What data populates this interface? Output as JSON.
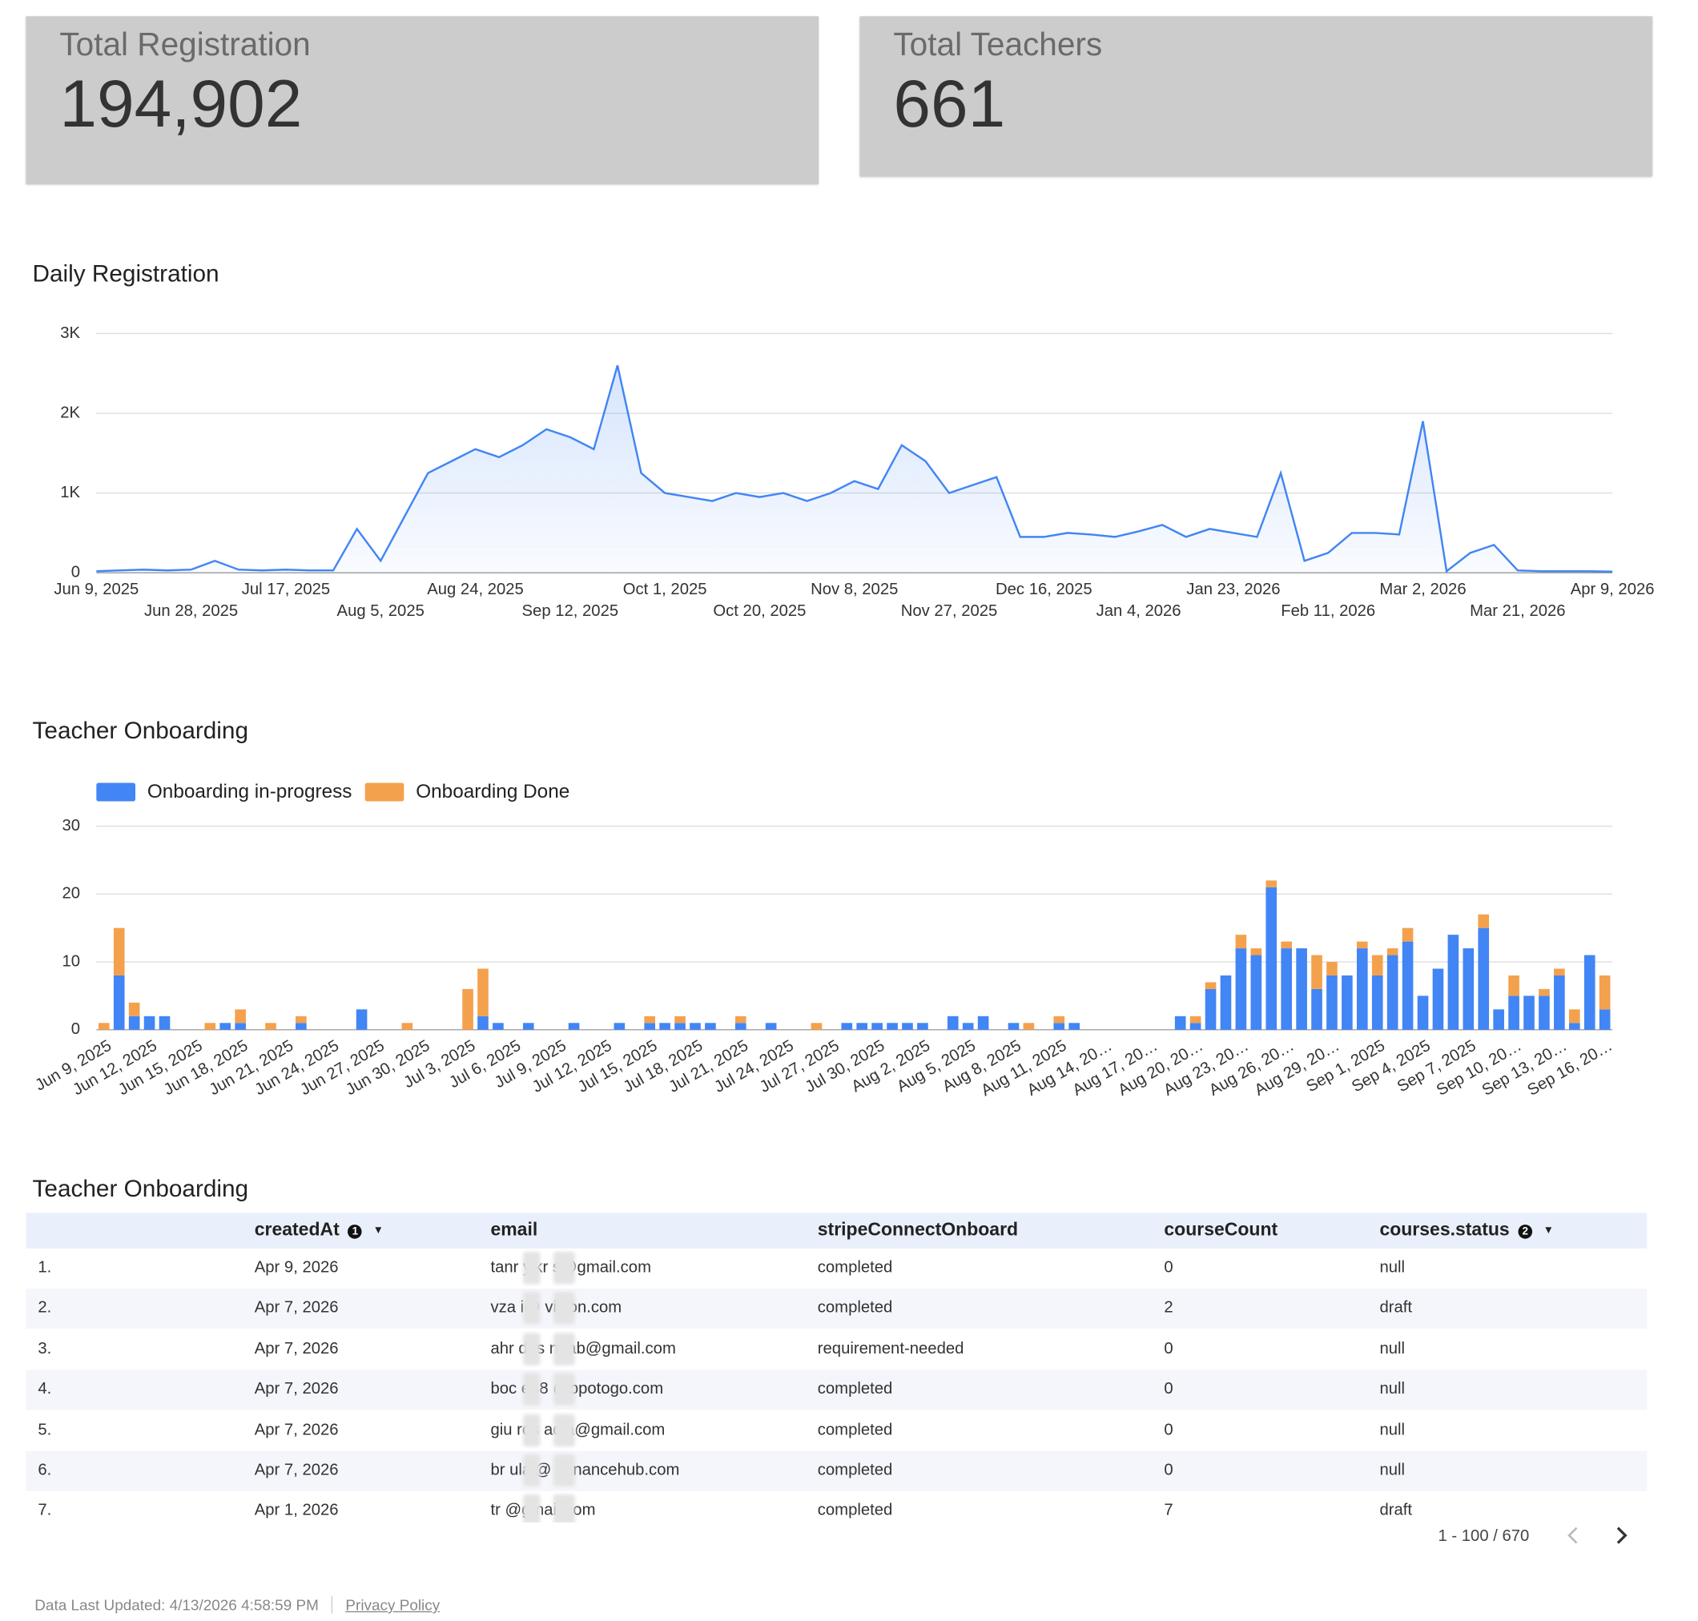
{
  "scorecards": [
    {
      "title": "Total Registration",
      "value": "194,902"
    },
    {
      "title": "Total Teachers",
      "value": "661"
    }
  ],
  "chart_data": [
    {
      "type": "line",
      "title": "Daily Registration",
      "color": "#4285f4",
      "grid": true,
      "categories": [
        "Jun 9, 2025",
        null,
        null,
        null,
        "Jun 28, 2025",
        null,
        null,
        null,
        "Jul 17, 2025",
        null,
        null,
        null,
        "Aug 5, 2025",
        null,
        null,
        null,
        "Aug 24, 2025",
        null,
        null,
        null,
        "Sep 12, 2025",
        null,
        null,
        null,
        "Oct 1, 2025",
        null,
        null,
        null,
        "Oct 20, 2025",
        null,
        null,
        null,
        "Nov 8, 2025",
        null,
        null,
        null,
        "Nov 27, 2025",
        null,
        null,
        null,
        "Dec 16, 2025",
        null,
        null,
        null,
        "Jan 4, 2026",
        null,
        null,
        null,
        "Jan 23, 2026",
        null,
        null,
        null,
        "Feb 11, 2026",
        null,
        null,
        null,
        "Mar 2, 2026",
        null,
        null,
        null,
        "Mar 21, 2026",
        null,
        null,
        null,
        "Apr 9, 2026"
      ],
      "values": [
        20,
        30,
        40,
        30,
        40,
        150,
        40,
        30,
        40,
        30,
        30,
        550,
        150,
        700,
        1250,
        1400,
        1550,
        1450,
        1600,
        1800,
        1700,
        1550,
        2600,
        1250,
        1000,
        950,
        900,
        1000,
        950,
        1000,
        900,
        1000,
        1150,
        1050,
        1600,
        1400,
        1000,
        1100,
        1200,
        450,
        450,
        500,
        480,
        450,
        520,
        600,
        450,
        550,
        500,
        450,
        1250,
        150,
        250,
        500,
        500,
        480,
        1900,
        20,
        250,
        350,
        30,
        20,
        20,
        20,
        15
      ],
      "ylim": [
        0,
        3000
      ],
      "yticks": [
        0,
        {
          "value": 1000,
          "label": "1K"
        },
        {
          "value": 2000,
          "label": "2K"
        },
        {
          "value": 3000,
          "label": "3K"
        }
      ]
    },
    {
      "type": "bar",
      "title": "Teacher Onboarding",
      "stacked": true,
      "grid": true,
      "legend": "top-left",
      "categories": [
        "Jun 9, 2025",
        null,
        null,
        "Jun 12, 2025",
        null,
        null,
        "Jun 15, 2025",
        null,
        null,
        "Jun 18, 2025",
        null,
        null,
        "Jun 21, 2025",
        null,
        null,
        "Jun 24, 2025",
        null,
        null,
        "Jun 27, 2025",
        null,
        null,
        "Jun 30, 2025",
        null,
        null,
        "Jul 3, 2025",
        null,
        null,
        "Jul 6, 2025",
        null,
        null,
        "Jul 9, 2025",
        null,
        null,
        "Jul 12, 2025",
        null,
        null,
        "Jul 15, 2025",
        null,
        null,
        "Jul 18, 2025",
        null,
        null,
        "Jul 21, 2025",
        null,
        null,
        "Jul 24, 2025",
        null,
        null,
        "Jul 27, 2025",
        null,
        null,
        "Jul 30, 2025",
        null,
        null,
        "Aug 2, 2025",
        null,
        null,
        "Aug 5, 2025",
        null,
        null,
        "Aug 8, 2025",
        null,
        null,
        "Aug 11, 2025",
        null,
        null,
        "Aug 14, 20…",
        null,
        null,
        "Aug 17, 20…",
        null,
        null,
        "Aug 20, 20…",
        null,
        null,
        "Aug 23, 20…",
        null,
        null,
        "Aug 26, 20…",
        null,
        null,
        "Aug 29, 20…",
        null,
        null,
        "Sep 1, 2025",
        null,
        null,
        "Sep 4, 2025",
        null,
        null,
        "Sep 7, 2025",
        null,
        null,
        "Sep 10, 20…",
        null,
        null,
        "Sep 13, 20…",
        null,
        null,
        "Sep 16, 20…"
      ],
      "series": [
        {
          "name": "Onboarding in-progress",
          "color": "#4285f4",
          "values": [
            0,
            8,
            2,
            2,
            2,
            0,
            0,
            0,
            1,
            1,
            0,
            0,
            0,
            1,
            0,
            0,
            0,
            3,
            0,
            0,
            0,
            0,
            0,
            0,
            0,
            2,
            1,
            0,
            1,
            0,
            0,
            1,
            0,
            0,
            1,
            0,
            1,
            1,
            1,
            1,
            1,
            0,
            1,
            0,
            1,
            0,
            0,
            0,
            0,
            1,
            1,
            1,
            1,
            1,
            1,
            0,
            2,
            1,
            2,
            0,
            1,
            0,
            0,
            1,
            1,
            0,
            0,
            0,
            0,
            0,
            0,
            2,
            1,
            6,
            8,
            12,
            11,
            21,
            12,
            12,
            6,
            8,
            8,
            12,
            8,
            11,
            13,
            5,
            9,
            14,
            12,
            15,
            3,
            5,
            5,
            5,
            8,
            1,
            11,
            3
          ]
        },
        {
          "name": "Onboarding Done",
          "color": "#f4a14e",
          "values": [
            1,
            7,
            2,
            0,
            0,
            0,
            0,
            1,
            0,
            2,
            0,
            1,
            0,
            1,
            0,
            0,
            0,
            0,
            0,
            0,
            1,
            0,
            0,
            0,
            6,
            7,
            0,
            0,
            0,
            0,
            0,
            0,
            0,
            0,
            0,
            0,
            1,
            0,
            1,
            0,
            0,
            0,
            1,
            0,
            0,
            0,
            0,
            1,
            0,
            0,
            0,
            0,
            0,
            0,
            0,
            0,
            0,
            0,
            0,
            0,
            0,
            1,
            0,
            1,
            0,
            0,
            0,
            0,
            0,
            0,
            0,
            0,
            1,
            1,
            0,
            2,
            1,
            1,
            1,
            0,
            5,
            2,
            0,
            1,
            3,
            1,
            2,
            0,
            0,
            0,
            0,
            2,
            0,
            3,
            0,
            1,
            1,
            2,
            0,
            5
          ]
        }
      ],
      "ylim": [
        0,
        30
      ],
      "yticks": [
        0,
        10,
        20,
        30
      ]
    }
  ],
  "table": {
    "title": "Teacher Onboarding",
    "columns": [
      "createdAt",
      "email",
      "stripeConnectOnboard",
      "courseCount",
      "courses.status"
    ],
    "sort_badges": [
      "1",
      "2"
    ],
    "rows": [
      [
        "1.",
        "Apr 9, 2026",
        "tanr y.kr s@gmail.com",
        "completed",
        "0",
        "null"
      ],
      [
        "2.",
        "Apr 7, 2026",
        "vza i@ vision.com",
        "completed",
        "2",
        "draft"
      ],
      [
        "3.",
        "Apr 7, 2026",
        "ahr des n3ab@gmail.com",
        "requirement-needed",
        "0",
        "null"
      ],
      [
        "4.",
        "Apr 7, 2026",
        "boc e48 @bpotogo.com",
        "completed",
        "0",
        "null"
      ],
      [
        "5.",
        "Apr 7, 2026",
        "giu ros adia@gmail.com",
        "completed",
        "0",
        "null"
      ],
      [
        "6.",
        "Apr 7, 2026",
        "br ulaj@ ofinancehub.com",
        "completed",
        "0",
        "null"
      ],
      [
        "7.",
        "Apr 1, 2026",
        "tr @gmail.com",
        "completed",
        "7",
        "draft"
      ]
    ],
    "pagination": "1 - 100 / 670"
  },
  "footer": {
    "updated": "Data Last Updated: 4/13/2026 4:58:59 PM",
    "privacy": "Privacy Policy"
  }
}
